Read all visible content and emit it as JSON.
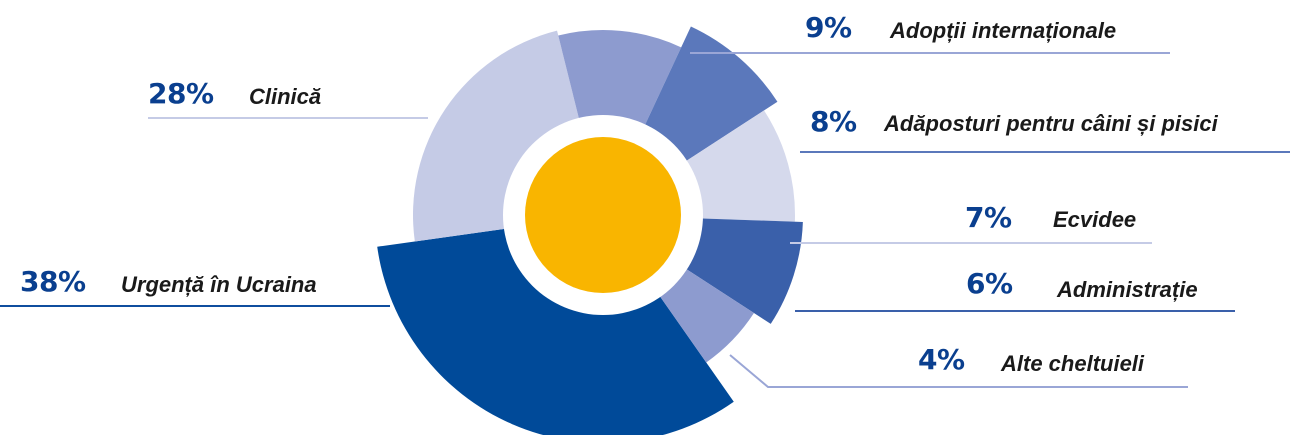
{
  "chart_data": {
    "type": "pie",
    "style": "polar-area donut",
    "slices": [
      {
        "label": "Urgență în Ucraina",
        "value": 38,
        "value_label": "38%",
        "color": "#004a99"
      },
      {
        "label": "Clinică",
        "value": 28,
        "value_label": "28%",
        "color": "#c5cbe6"
      },
      {
        "label": "Adopții internaționale",
        "value": 9,
        "value_label": "9%",
        "color": "#8d9bcf"
      },
      {
        "label": "Adăposturi pentru câini și pisici",
        "value": 8,
        "value_label": "8%",
        "color": "#5b78bb"
      },
      {
        "label": "Ecvidee",
        "value": 7,
        "value_label": "7%",
        "color": "#d5d9ec"
      },
      {
        "label": "Administrație",
        "value": 6,
        "value_label": "6%",
        "color": "#3a60aa"
      },
      {
        "label": "Alte cheltuieli",
        "value": 4,
        "value_label": "4%",
        "color": "#8d9bcf"
      }
    ],
    "center_color": "#f9b500",
    "center_ring_color": "#ffffff",
    "leader_color": "#9aa6d6"
  }
}
